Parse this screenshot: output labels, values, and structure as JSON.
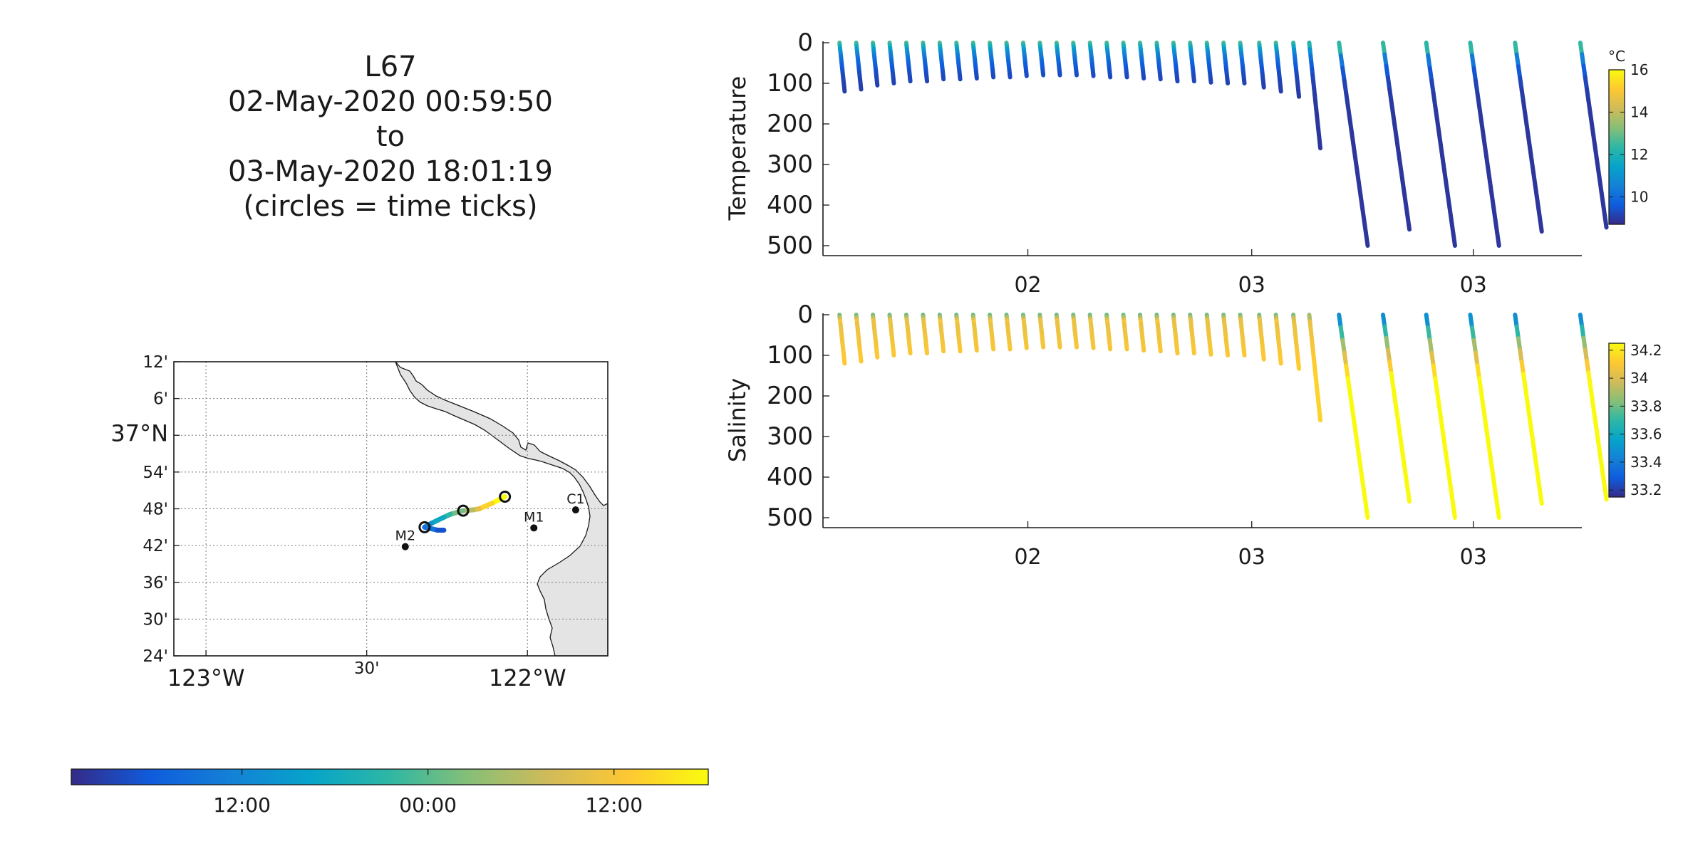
{
  "title": {
    "lines": [
      "L67",
      "02-May-2020 00:59:50",
      "to",
      "03-May-2020 18:01:19",
      "(circles = time ticks)"
    ]
  },
  "map": {
    "lat_ticks": [
      "12'",
      "6'",
      "37°N",
      "54'",
      "48'",
      "42'",
      "36'",
      "30'",
      "24'"
    ],
    "lat_values": [
      37.2,
      37.1,
      37.0,
      36.9,
      36.8,
      36.7,
      36.6,
      36.5,
      36.4
    ],
    "lon_ticks": [
      "123°W",
      "30'",
      "122°W"
    ],
    "lon_values": [
      -123.0,
      -122.5,
      -122.0
    ],
    "lat_range": [
      36.4,
      37.2
    ],
    "lon_range": [
      -123.1,
      -121.75
    ],
    "stations": [
      {
        "name": "C1",
        "lon": -121.85,
        "lat": 36.797
      },
      {
        "name": "M1",
        "lon": -121.98,
        "lat": 36.748
      },
      {
        "name": "M2",
        "lon": -122.38,
        "lat": 36.697
      }
    ],
    "track": [
      {
        "lon": -122.07,
        "lat": 36.833,
        "t": 0.0
      },
      {
        "lon": -122.11,
        "lat": 36.815,
        "t": 0.1
      },
      {
        "lon": -122.15,
        "lat": 36.8,
        "t": 0.2
      },
      {
        "lon": -122.17,
        "lat": 36.797,
        "t": 0.3
      },
      {
        "lon": -122.2,
        "lat": 36.795,
        "t": 0.4
      },
      {
        "lon": -122.24,
        "lat": 36.785,
        "t": 0.5
      },
      {
        "lon": -122.26,
        "lat": 36.777,
        "t": 0.6
      },
      {
        "lon": -122.3,
        "lat": 36.76,
        "t": 0.7
      },
      {
        "lon": -122.32,
        "lat": 36.75,
        "t": 0.8
      },
      {
        "lon": -122.28,
        "lat": 36.742,
        "t": 0.9
      },
      {
        "lon": -122.26,
        "lat": 36.742,
        "t": 1.0
      }
    ],
    "time_circles": [
      {
        "lon": -122.07,
        "lat": 36.833
      },
      {
        "lon": -122.2,
        "lat": 36.795
      },
      {
        "lon": -122.32,
        "lat": 36.75
      }
    ]
  },
  "time_colorbar": {
    "ticks": [
      "12:00",
      "00:00",
      "12:00"
    ],
    "tick_fractions": [
      0.268,
      0.56,
      0.852
    ]
  },
  "chart_data": [
    {
      "type": "scatter",
      "ylabel": "Temperature",
      "ylim": [
        0,
        500
      ],
      "y_ticks": [
        0,
        100,
        200,
        300,
        400,
        500
      ],
      "x_ticks": [
        "02",
        "03",
        "03"
      ],
      "x_tick_fractions": [
        0.27,
        0.565,
        0.857
      ],
      "colorbar": {
        "unit": "°C",
        "ticks": [
          10,
          12,
          14,
          16
        ],
        "range": [
          8.7,
          16
        ]
      },
      "profiles": [
        {
          "x": 0.003,
          "max_depth": 120
        },
        {
          "x": 0.025,
          "max_depth": 115
        },
        {
          "x": 0.047,
          "max_depth": 105
        },
        {
          "x": 0.069,
          "max_depth": 100
        },
        {
          "x": 0.091,
          "max_depth": 95
        },
        {
          "x": 0.113,
          "max_depth": 95
        },
        {
          "x": 0.135,
          "max_depth": 90
        },
        {
          "x": 0.157,
          "max_depth": 90
        },
        {
          "x": 0.179,
          "max_depth": 88
        },
        {
          "x": 0.201,
          "max_depth": 85
        },
        {
          "x": 0.223,
          "max_depth": 85
        },
        {
          "x": 0.245,
          "max_depth": 82
        },
        {
          "x": 0.267,
          "max_depth": 80
        },
        {
          "x": 0.289,
          "max_depth": 80
        },
        {
          "x": 0.311,
          "max_depth": 80
        },
        {
          "x": 0.333,
          "max_depth": 82
        },
        {
          "x": 0.355,
          "max_depth": 85
        },
        {
          "x": 0.377,
          "max_depth": 85
        },
        {
          "x": 0.399,
          "max_depth": 88
        },
        {
          "x": 0.421,
          "max_depth": 90
        },
        {
          "x": 0.443,
          "max_depth": 95
        },
        {
          "x": 0.465,
          "max_depth": 95
        },
        {
          "x": 0.487,
          "max_depth": 98
        },
        {
          "x": 0.509,
          "max_depth": 100
        },
        {
          "x": 0.531,
          "max_depth": 100
        },
        {
          "x": 0.556,
          "max_depth": 110
        },
        {
          "x": 0.578,
          "max_depth": 120
        },
        {
          "x": 0.601,
          "max_depth": 133
        },
        {
          "x": 0.622,
          "max_depth": 260
        },
        {
          "x": 0.68,
          "max_depth": 500
        },
        {
          "x": 0.738,
          "max_depth": 460
        },
        {
          "x": 0.795,
          "max_depth": 500
        },
        {
          "x": 0.853,
          "max_depth": 500
        },
        {
          "x": 0.912,
          "max_depth": 465
        },
        {
          "x": 0.998,
          "max_depth": 455
        }
      ]
    },
    {
      "type": "scatter",
      "ylabel": "Salinity",
      "ylim": [
        0,
        500
      ],
      "y_ticks": [
        0,
        100,
        200,
        300,
        400,
        500
      ],
      "x_ticks": [
        "02",
        "03",
        "03"
      ],
      "x_tick_fractions": [
        0.27,
        0.565,
        0.857
      ],
      "colorbar": {
        "unit": "",
        "ticks": [
          33.2,
          33.4,
          33.6,
          33.8,
          34,
          34.2
        ],
        "range": [
          33.15,
          34.25
        ]
      },
      "profiles": [
        {
          "x": 0.003,
          "max_depth": 120
        },
        {
          "x": 0.025,
          "max_depth": 115
        },
        {
          "x": 0.047,
          "max_depth": 105
        },
        {
          "x": 0.069,
          "max_depth": 100
        },
        {
          "x": 0.091,
          "max_depth": 95
        },
        {
          "x": 0.113,
          "max_depth": 95
        },
        {
          "x": 0.135,
          "max_depth": 90
        },
        {
          "x": 0.157,
          "max_depth": 90
        },
        {
          "x": 0.179,
          "max_depth": 88
        },
        {
          "x": 0.201,
          "max_depth": 85
        },
        {
          "x": 0.223,
          "max_depth": 85
        },
        {
          "x": 0.245,
          "max_depth": 82
        },
        {
          "x": 0.267,
          "max_depth": 80
        },
        {
          "x": 0.289,
          "max_depth": 80
        },
        {
          "x": 0.311,
          "max_depth": 80
        },
        {
          "x": 0.333,
          "max_depth": 82
        },
        {
          "x": 0.355,
          "max_depth": 85
        },
        {
          "x": 0.377,
          "max_depth": 85
        },
        {
          "x": 0.399,
          "max_depth": 88
        },
        {
          "x": 0.421,
          "max_depth": 90
        },
        {
          "x": 0.443,
          "max_depth": 95
        },
        {
          "x": 0.465,
          "max_depth": 95
        },
        {
          "x": 0.487,
          "max_depth": 98
        },
        {
          "x": 0.509,
          "max_depth": 100
        },
        {
          "x": 0.531,
          "max_depth": 100
        },
        {
          "x": 0.556,
          "max_depth": 110
        },
        {
          "x": 0.578,
          "max_depth": 120
        },
        {
          "x": 0.601,
          "max_depth": 133
        },
        {
          "x": 0.622,
          "max_depth": 260
        },
        {
          "x": 0.68,
          "max_depth": 500
        },
        {
          "x": 0.738,
          "max_depth": 460
        },
        {
          "x": 0.795,
          "max_depth": 500
        },
        {
          "x": 0.853,
          "max_depth": 500
        },
        {
          "x": 0.912,
          "max_depth": 465
        },
        {
          "x": 0.998,
          "max_depth": 455
        }
      ]
    }
  ],
  "colors": {
    "land": "#e4e4e4",
    "grid": "#7a7a7a",
    "axis": "#1a1a1a",
    "parula_stops": [
      "#352a87",
      "#0f5cdd",
      "#1481d6",
      "#06a4ca",
      "#2eb7a4",
      "#87bf77",
      "#d1bb59",
      "#fec832",
      "#f9fb0e"
    ]
  }
}
